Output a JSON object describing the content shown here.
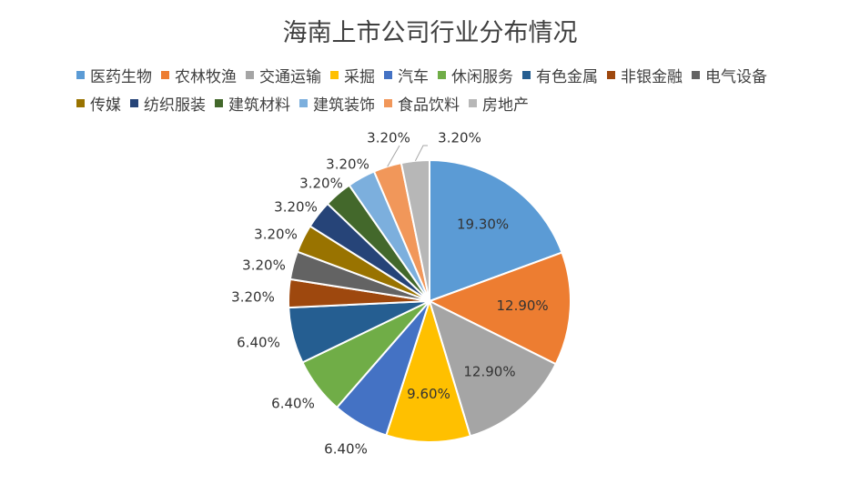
{
  "chart_data": {
    "type": "pie",
    "title": "海南上市公司行业分布情况",
    "legend_position": "top",
    "categories": [
      "医药生物",
      "农林牧渔",
      "交通运输",
      "采掘",
      "汽车",
      "休闲服务",
      "有色金属",
      "非银金融",
      "电气设备",
      "传媒",
      "纺织服装",
      "建筑材料",
      "建筑装饰",
      "食品饮料",
      "房地产"
    ],
    "values": [
      19.3,
      12.9,
      12.9,
      9.6,
      6.4,
      6.4,
      6.4,
      3.2,
      3.2,
      3.2,
      3.2,
      3.2,
      3.2,
      3.2,
      3.2
    ],
    "labels": [
      "19.30%",
      "12.90%",
      "12.90%",
      "9.60%",
      "6.40%",
      "6.40%",
      "6.40%",
      "3.20%",
      "3.20%",
      "3.20%",
      "3.20%",
      "3.20%",
      "3.20%",
      "3.20%",
      "3.20%"
    ],
    "colors": [
      "#5b9bd5",
      "#ed7d31",
      "#a5a5a5",
      "#ffc000",
      "#4472c4",
      "#70ad47",
      "#255e91",
      "#9e480e",
      "#636363",
      "#997300",
      "#264478",
      "#43682b",
      "#7cafdd",
      "#f1975a",
      "#b7b7b7"
    ]
  }
}
